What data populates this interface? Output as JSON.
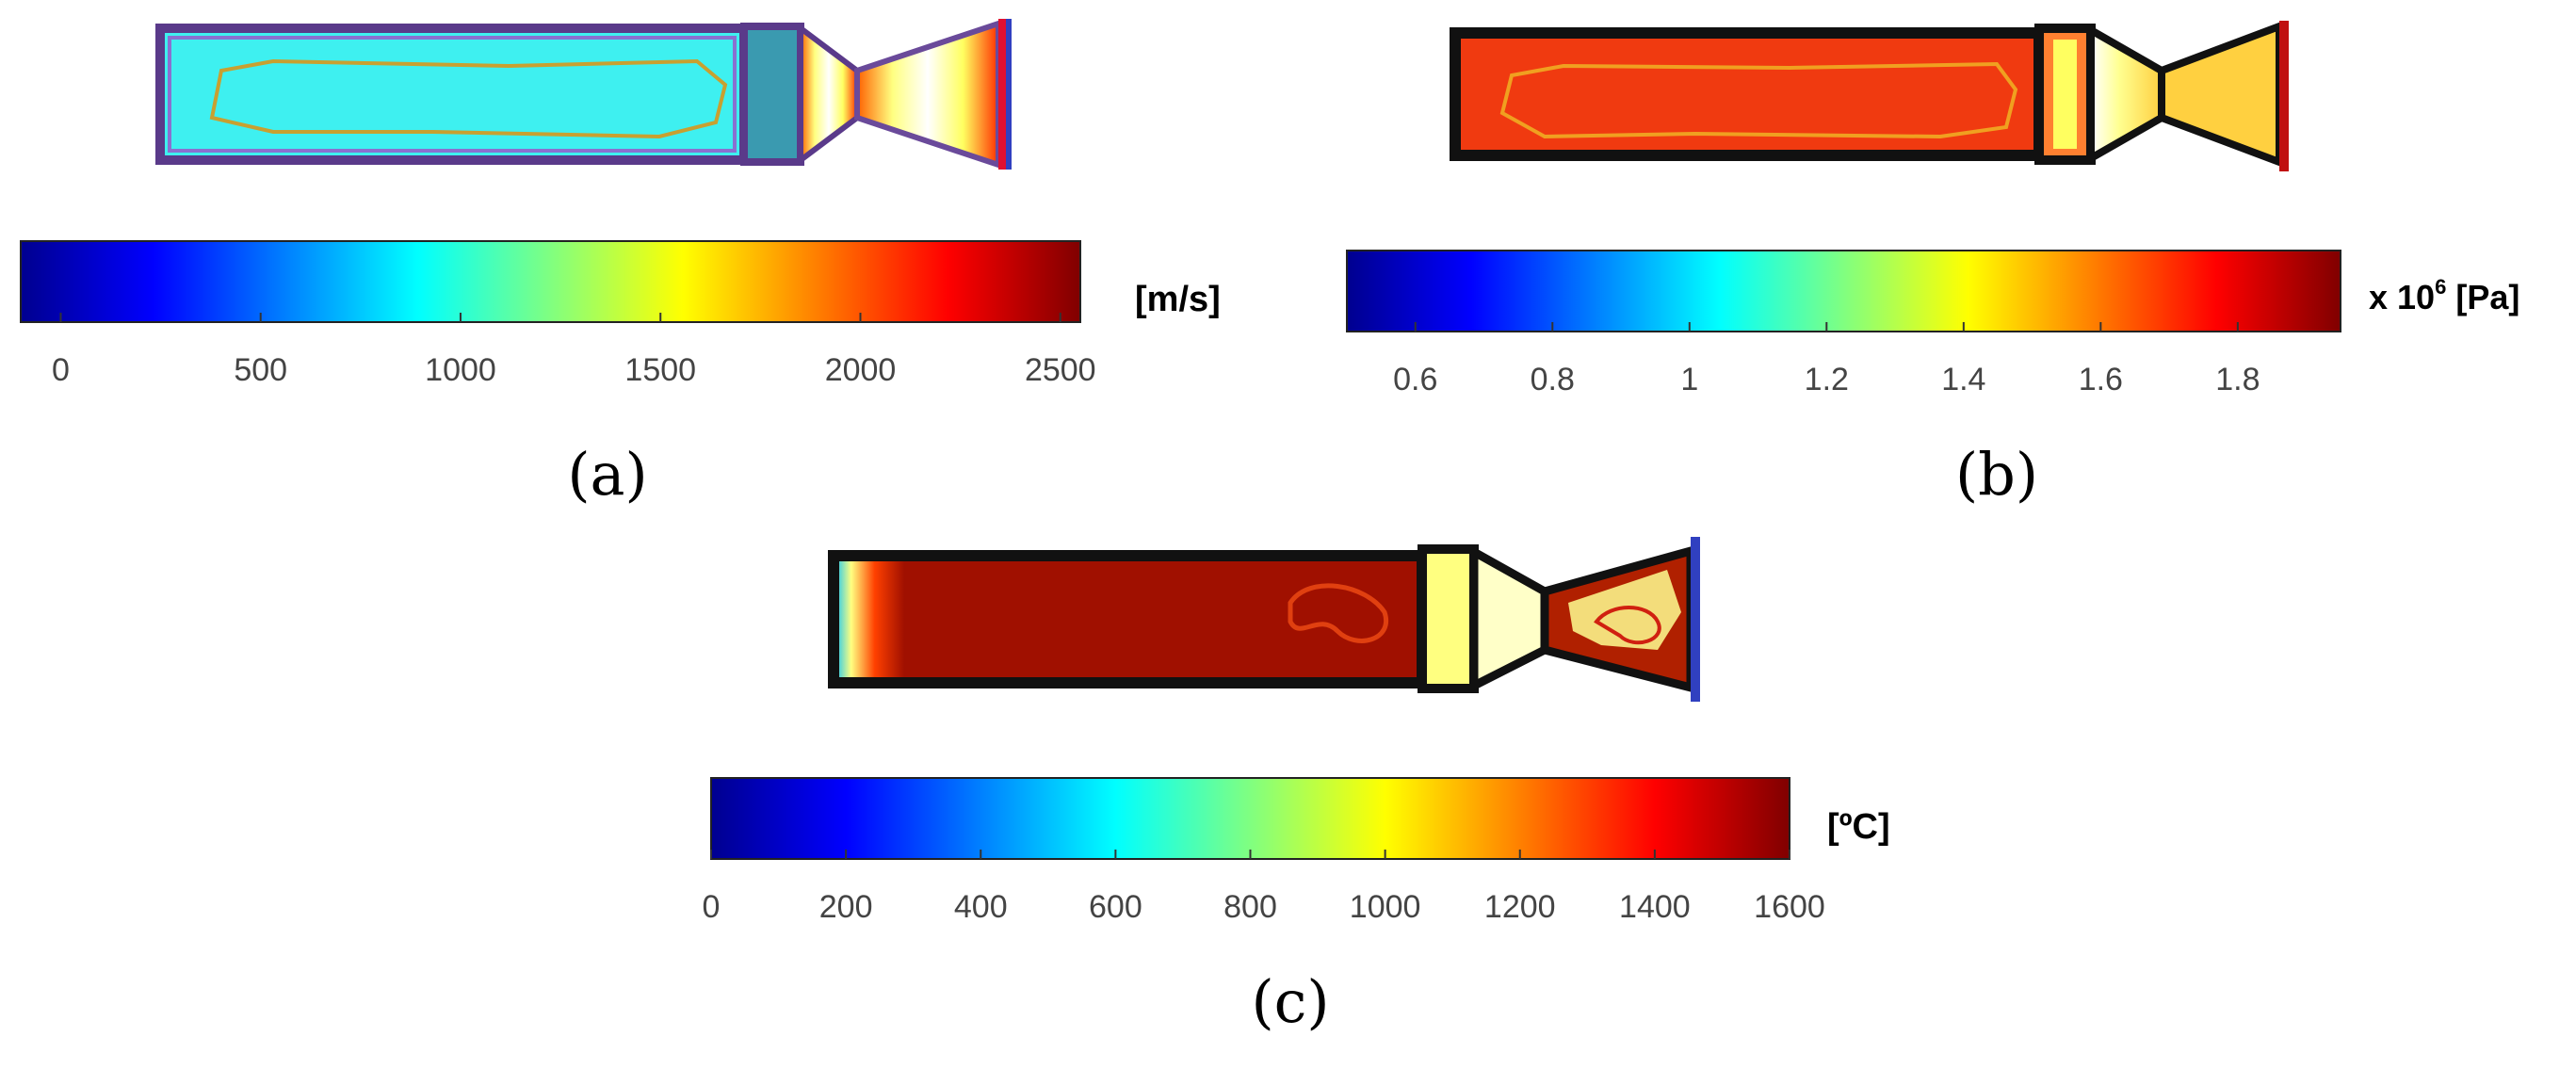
{
  "colorscale": {
    "name": "jet",
    "stops": [
      "#00008f",
      "#0000ff",
      "#0080ff",
      "#00ffff",
      "#80ff80",
      "#ffff00",
      "#ff8000",
      "#ff0000",
      "#800000"
    ]
  },
  "panels": [
    {
      "id": "a",
      "label": "(a)",
      "unit": "[m/s]",
      "unit_prefix": "",
      "unit_superscript": "",
      "unit_suffix": "",
      "range": [
        -100,
        2550
      ],
      "ticks": [
        "0",
        "500",
        "1000",
        "1500",
        "2000",
        "2500"
      ],
      "tick_values": [
        0,
        500,
        1000,
        1500,
        2000,
        2500
      ],
      "chamber_fill": "#3ef0f0",
      "chamber_outline": "#5a3a8a",
      "contour_color": "#c8a030",
      "nozzle_fill": "#ffee60"
    },
    {
      "id": "b",
      "label": "(b)",
      "unit": "",
      "unit_prefix": "x 10",
      "unit_superscript": "6",
      "unit_suffix": " [Pa]",
      "range": [
        0.5,
        1.95
      ],
      "ticks": [
        "0.6",
        "0.8",
        "1",
        "1.2",
        "1.4",
        "1.6",
        "1.8"
      ],
      "tick_values": [
        0.6,
        0.8,
        1.0,
        1.2,
        1.4,
        1.6,
        1.8
      ],
      "chamber_fill": "#f03a10",
      "chamber_outline": "#111111",
      "contour_color": "#f0a020",
      "nozzle_fill": "#ffffd0"
    },
    {
      "id": "c",
      "label": "(c)",
      "unit": "[ºC]",
      "unit_prefix": "",
      "unit_superscript": "",
      "unit_suffix": "",
      "range": [
        0,
        1600
      ],
      "ticks": [
        "0",
        "200",
        "400",
        "600",
        "800",
        "1000",
        "1200",
        "1400",
        "1600"
      ],
      "tick_values": [
        0,
        200,
        400,
        600,
        800,
        1000,
        1200,
        1400,
        1600
      ],
      "chamber_fill": "#a01000",
      "chamber_outline": "#111111",
      "contour_color": "#e04010",
      "nozzle_fill": "#ffffc0"
    }
  ]
}
